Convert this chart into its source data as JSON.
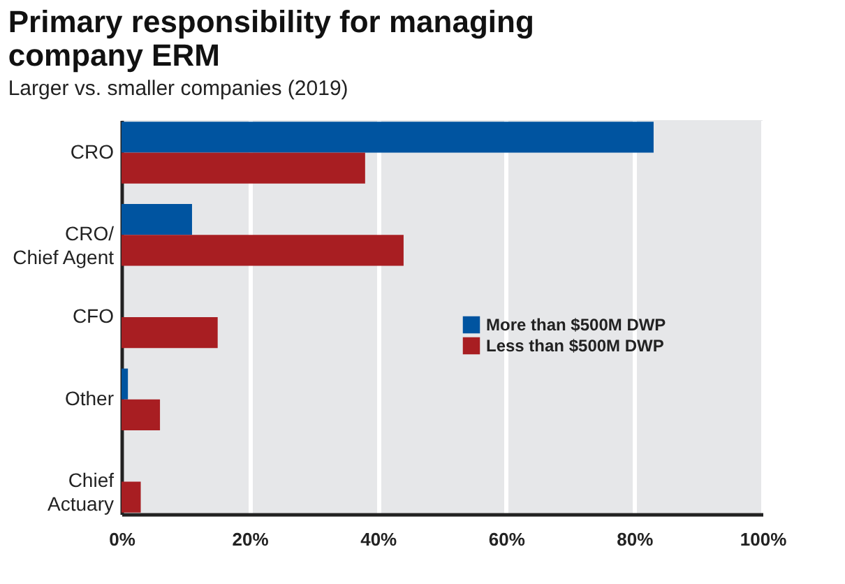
{
  "chart_data": {
    "type": "bar",
    "orientation": "horizontal",
    "title": "Primary responsibility for managing\ncompany ERM",
    "subtitle": "Larger vs. smaller companies (2019)",
    "categories": [
      "CRO",
      "CRO/\nChief Agent",
      "CFO",
      "Other",
      "Chief\nActuary"
    ],
    "series": [
      {
        "name": "More than $500M DWP",
        "color": "#0054a0",
        "values": [
          83,
          11,
          0,
          1,
          0
        ]
      },
      {
        "name": "Less than $500M DWP",
        "color": "#a81e22",
        "values": [
          38,
          44,
          15,
          6,
          3
        ]
      }
    ],
    "xlim": [
      0,
      100
    ],
    "xticks": [
      {
        "value": 0,
        "label": "0%"
      },
      {
        "value": 20,
        "label": "20%"
      },
      {
        "value": 40,
        "label": "40%"
      },
      {
        "value": 60,
        "label": "60%"
      },
      {
        "value": 80,
        "label": "80%"
      },
      {
        "value": 100,
        "label": "100%"
      }
    ],
    "grid": "x",
    "legend": "right"
  }
}
